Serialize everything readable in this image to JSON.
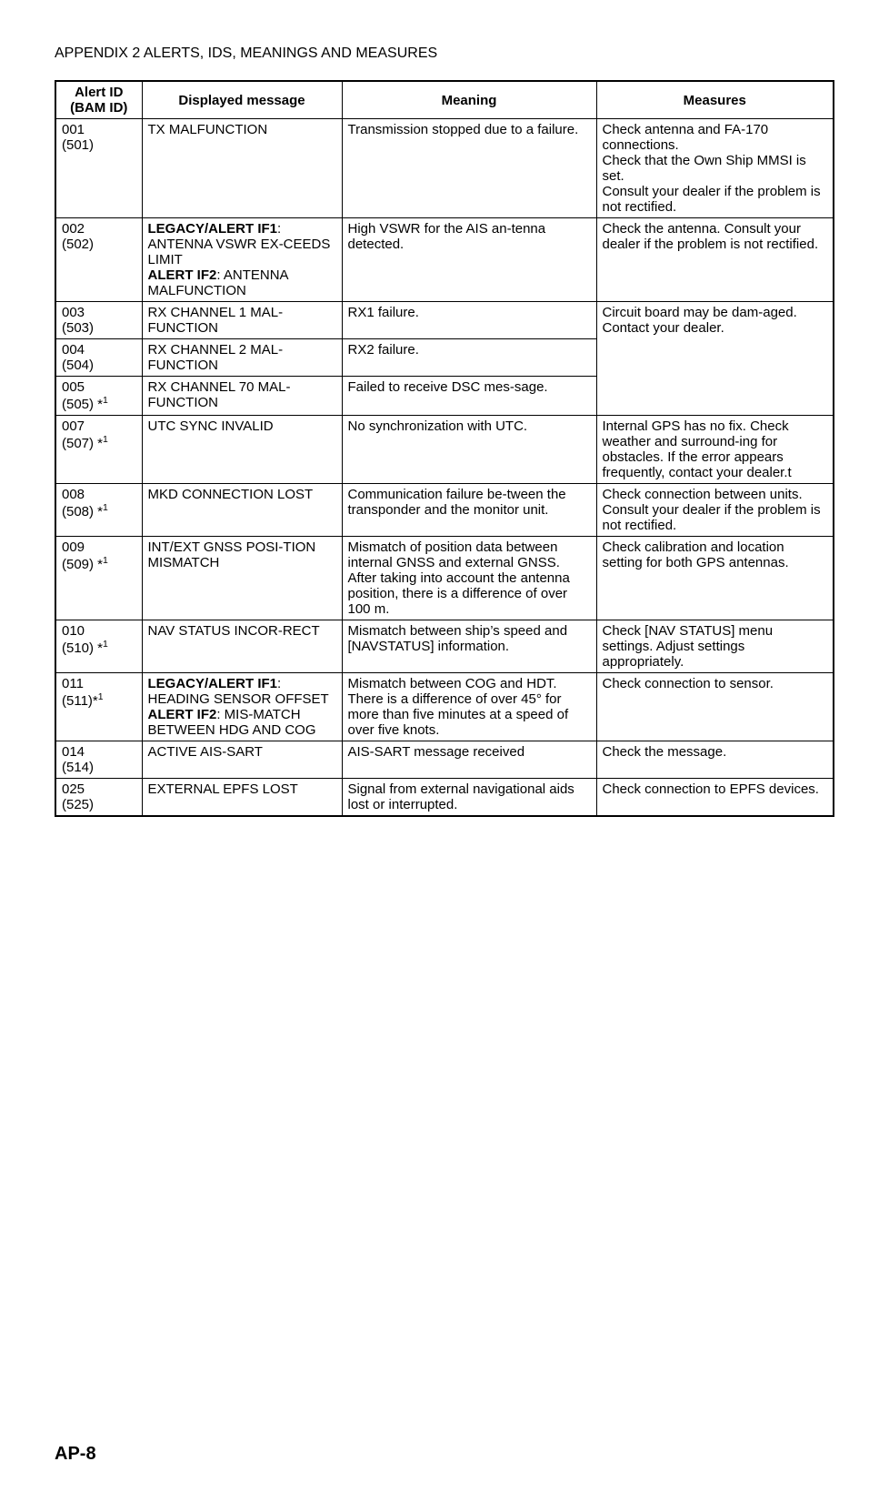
{
  "page_header": "APPENDIX 2 ALERTS, IDS, MEANINGS AND MEASURES",
  "footer": "AP-8",
  "headers": {
    "id_top": "Alert ID",
    "id_bottom": "(BAM ID)",
    "message": "Displayed message",
    "meaning": "Meaning",
    "measures": "Measures"
  },
  "rows": [
    {
      "id1": "001",
      "id2": "(501)",
      "sup": "",
      "msg_html": "TX MALFUNCTION",
      "meaning": "Transmission stopped due to a failure.",
      "measures": "Check antenna and FA-170 connections.\nCheck that the Own Ship MMSI is set.\nConsult your dealer if the problem is not rectified.",
      "measures_rowspan": 1
    },
    {
      "id1": "002",
      "id2": "(502)",
      "sup": "",
      "msg_html": "<b>LEGACY/ALERT IF1</b>: ANTENNA VSWR EX-CEEDS LIMIT<br><b>ALERT IF2</b>: ANTENNA MALFUNCTION",
      "meaning": "High VSWR for the AIS an-tenna detected.",
      "measures": "Check the antenna. Consult your dealer if the problem is not rectified.",
      "measures_rowspan": 1
    },
    {
      "id1": "003",
      "id2": "(503)",
      "sup": "",
      "msg_html": "RX CHANNEL 1 MAL-FUNCTION",
      "meaning": "RX1 failure.",
      "measures": "Circuit board may be dam-aged. Contact your dealer.",
      "measures_rowspan": 3
    },
    {
      "id1": "004",
      "id2": "(504)",
      "sup": "",
      "msg_html": "RX CHANNEL 2 MAL-FUNCTION",
      "meaning": "RX2 failure.",
      "measures": null,
      "measures_rowspan": 0
    },
    {
      "id1": "005",
      "id2": "(505) *",
      "sup": "1",
      "msg_html": "RX CHANNEL 70 MAL-FUNCTION",
      "meaning": "Failed to receive DSC mes-sage.",
      "measures": null,
      "measures_rowspan": 0
    },
    {
      "id1": "007",
      "id2": "(507) *",
      "sup": "1",
      "msg_html": "UTC SYNC INVALID",
      "meaning": "No synchronization with UTC.",
      "measures": "Internal GPS has no fix. Check weather and surround-ing for obstacles. If the error appears frequently, contact your dealer.t",
      "measures_rowspan": 1
    },
    {
      "id1": "008",
      "id2": "(508) *",
      "sup": "1",
      "msg_html": "MKD CONNECTION LOST",
      "meaning": "Communication failure be-tween the transponder and the monitor unit.",
      "measures": "Check connection between units. Consult your dealer if the problem is not rectified.",
      "measures_rowspan": 1
    },
    {
      "id1": "009",
      "id2": "(509) *",
      "sup": "1",
      "msg_html": "INT/EXT GNSS POSI-TION MISMATCH",
      "meaning": "Mismatch of position data between internal GNSS and external GNSS. After taking into account the antenna position, there is a difference of over 100 m.",
      "measures": "Check calibration and location setting for both GPS antennas.",
      "measures_rowspan": 1
    },
    {
      "id1": "010",
      "id2": "(510) *",
      "sup": "1",
      "msg_html": "NAV STATUS INCOR-RECT",
      "meaning": "Mismatch between ship’s speed and [NAVSTATUS] information.",
      "measures": "Check [NAV STATUS] menu settings. Adjust settings appropriately.",
      "measures_rowspan": 1
    },
    {
      "id1": "011",
      "id2": "(511)*",
      "sup": "1",
      "msg_html": "<b>LEGACY/ALERT IF1</b>: HEADING SENSOR OFFSET<br><b>ALERT IF2</b>: MIS-MATCH BETWEEN HDG AND COG",
      "meaning": "Mismatch between COG and HDT. There is a difference of over 45° for more than five minutes at a speed of over five knots.",
      "measures": "Check connection to sensor.",
      "measures_rowspan": 1
    },
    {
      "id1": "014",
      "id2": "(514)",
      "sup": "",
      "msg_html": "ACTIVE AIS-SART",
      "meaning": "AIS-SART message received",
      "measures": "Check the message.",
      "measures_rowspan": 1
    },
    {
      "id1": "025",
      "id2": "(525)",
      "sup": "",
      "msg_html": "EXTERNAL EPFS LOST",
      "meaning": "Signal from external navigational aids lost or interrupted.",
      "measures": "Check connection to EPFS devices.",
      "measures_rowspan": 1
    }
  ]
}
